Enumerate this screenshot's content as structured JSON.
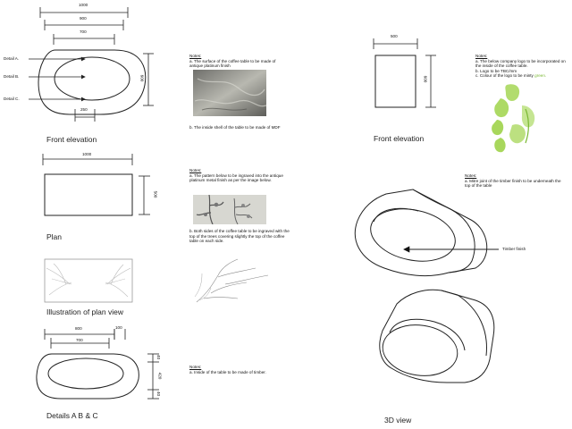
{
  "titles": {
    "front_left": "Front elevation",
    "plan": "Plan",
    "illustration": "Illustration of plan view",
    "details": "Details A B & C",
    "front_right": "Front elevation",
    "view3d": "3D view"
  },
  "dims": {
    "fe_1000": "1000",
    "fe_900": "900",
    "fe_700": "700",
    "fe_600": "600",
    "fe_250": "250",
    "plan_1000": "1000",
    "plan_500": "500",
    "det_800": "800",
    "det_700": "700",
    "det_100": "100",
    "det_40_top": "40",
    "det_420": "420",
    "det_40_bot": "40",
    "fr_500": "500",
    "fr_600": "600"
  },
  "details": {
    "a": "Detail A.",
    "b": "Detail B.",
    "c": "Detail C."
  },
  "callouts": {
    "timber": "Timber finish"
  },
  "notes": {
    "n1": {
      "heading": "Notes:",
      "a": "a. The surface of the coffee table to be made of antique platinum finish",
      "b": "b. The inside shell of the table to be made of MDF"
    },
    "n2": {
      "heading": "Notes:",
      "a": "a. The pattern below to be ingraved into the antique platinum metal finish as per the image below.",
      "b": "b. Both sides of the coffee table to be ingraved with the top of the trees covering slightly the top of the coffee table on each side."
    },
    "n3": {
      "heading": "Notes:",
      "a": "a. Inside of the table to be made of timber."
    },
    "n4": {
      "heading": "Notes:",
      "a": "a. The below company logo to be incorporated on the inside of the coffee table.",
      "b": "b. Logo to be TBC/mm",
      "c_prefix": "c. Colour of the logo to be minty ",
      "c_green": "green."
    },
    "n5": {
      "heading": "Notes:",
      "a": "a. Mitre joint of the timber finish to be underneath the top of the table"
    }
  },
  "colors": {
    "logo_green": "#9fd34a",
    "platinum": "#8a8a86"
  }
}
